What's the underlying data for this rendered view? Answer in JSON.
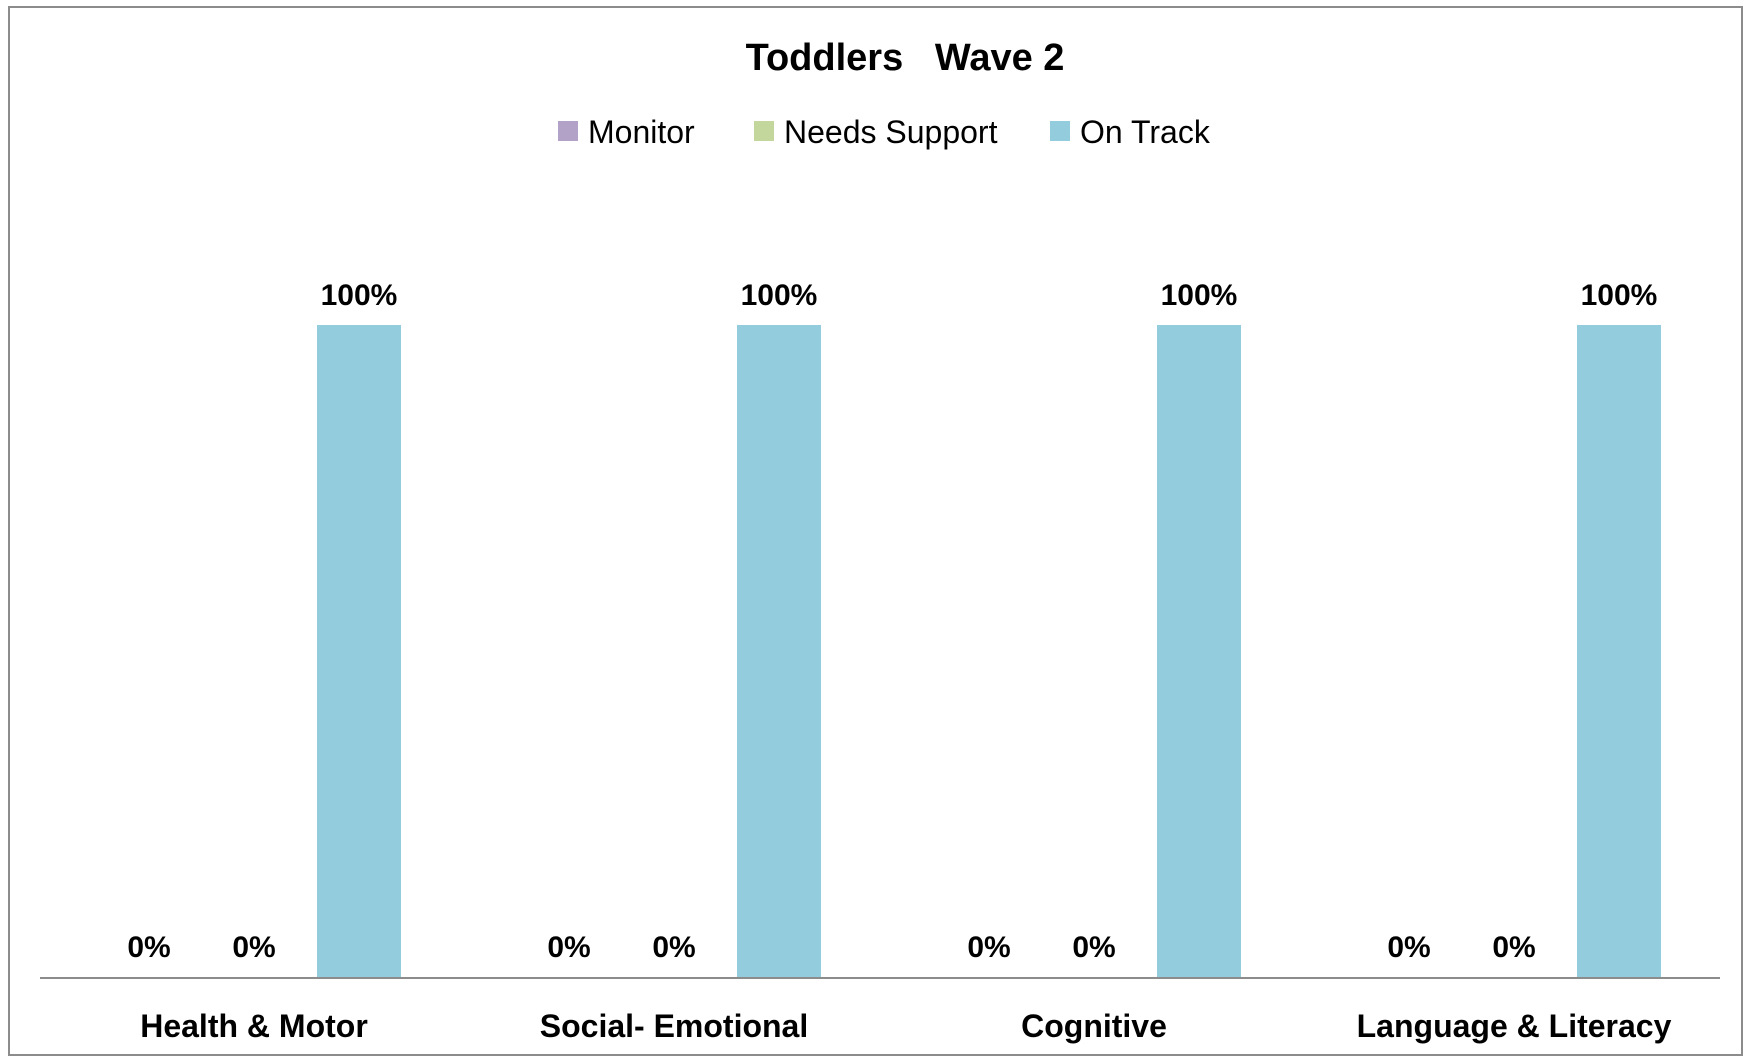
{
  "chart_data": {
    "type": "bar",
    "title": "Toddlers   Wave 2",
    "xlabel": "",
    "ylabel": "",
    "ylim": [
      0,
      1
    ],
    "grid": false,
    "legend_position": "top",
    "categories": [
      "Health & Motor",
      "Social- Emotional",
      "Cognitive",
      "Language & Literacy"
    ],
    "series": [
      {
        "name": "Monitor",
        "color": "#b3a2c7",
        "values": [
          0,
          0,
          0,
          0
        ],
        "labels": [
          "0%",
          "0%",
          "0%",
          "0%"
        ]
      },
      {
        "name": "Needs Support",
        "color": "#c3d69b",
        "values": [
          0,
          0,
          0,
          0
        ],
        "labels": [
          "0%",
          "0%",
          "0%",
          "0%"
        ]
      },
      {
        "name": "On Track",
        "color": "#93cddd",
        "values": [
          1,
          1,
          1,
          1
        ],
        "labels": [
          "100%",
          "100%",
          "100%",
          "100%"
        ]
      }
    ]
  }
}
